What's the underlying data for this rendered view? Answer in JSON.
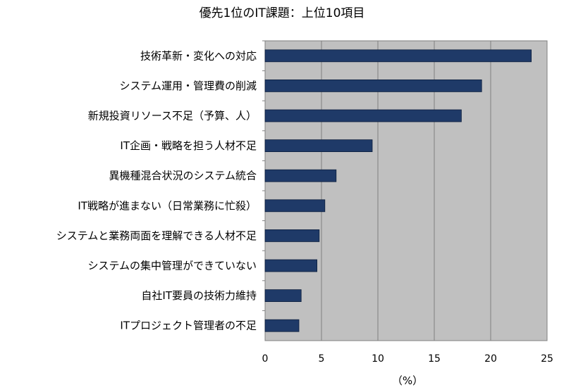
{
  "chart_data": {
    "type": "bar",
    "orientation": "horizontal",
    "title": "優先1位のIT課題：上位10項目",
    "xlabel": "（%）",
    "ylabel": "",
    "xlim": [
      0,
      25
    ],
    "xticks": [
      0,
      5,
      10,
      15,
      20,
      25
    ],
    "grid": true,
    "categories": [
      "技術革新・変化への対応",
      "システム運用・管理費の削減",
      "新規投資リソース不足（予算、人）",
      "IT企画・戦略を担う人材不足",
      "異機種混合状況のシステム統合",
      "IT戦略が進まない（日常業務に忙殺）",
      "システムと業務両面を理解できる人材不足",
      "システムの集中管理ができていない",
      "自社IT要員の技術力維持",
      "ITプロジェクト管理者の不足"
    ],
    "values": [
      23.6,
      19.2,
      17.4,
      9.5,
      6.3,
      5.3,
      4.8,
      4.6,
      3.2,
      3.0
    ],
    "colors": {
      "bar": "#1f3a68",
      "plot_bg": "#c0c0c0",
      "grid": "#808080"
    }
  }
}
